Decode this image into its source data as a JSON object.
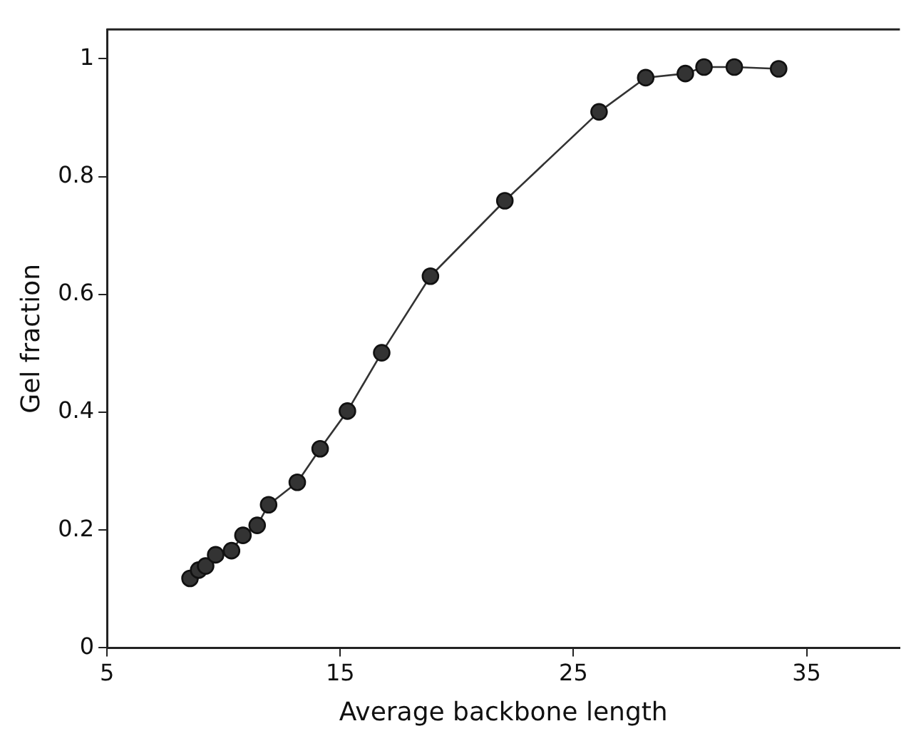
{
  "chart_data": {
    "type": "line",
    "xlabel": "Average backbone length",
    "ylabel": "Gel fraction",
    "x": [
      8.56,
      8.93,
      9.23,
      9.66,
      10.34,
      10.83,
      11.44,
      11.93,
      13.16,
      14.14,
      15.31,
      16.78,
      18.87,
      22.06,
      26.1,
      28.1,
      29.8,
      30.6,
      31.9,
      33.8
    ],
    "series": [
      {
        "color": "#333333",
        "values": [
          0.118,
          0.132,
          0.139,
          0.158,
          0.165,
          0.191,
          0.208,
          0.243,
          0.281,
          0.338,
          0.402,
          0.501,
          0.631,
          0.759,
          0.91,
          0.968,
          0.975,
          0.986,
          0.986,
          0.983
        ]
      }
    ],
    "xlim": [
      5,
      39
    ],
    "xticks": [
      5,
      15,
      25,
      35
    ],
    "ylim": [
      0,
      1.05
    ],
    "yticks": [
      0,
      0.2,
      0.4,
      0.6,
      0.8,
      1
    ],
    "marker": "circle",
    "line_style": "solid",
    "grid": false,
    "legend": false
  }
}
